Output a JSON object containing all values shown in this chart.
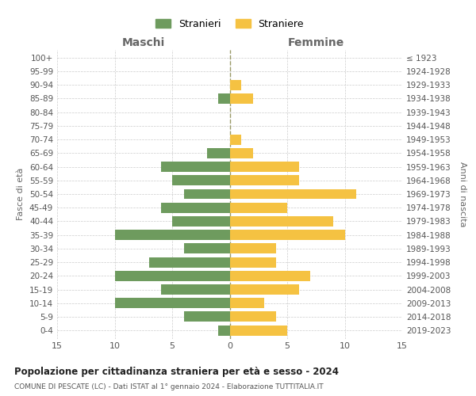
{
  "age_groups": [
    "0-4",
    "5-9",
    "10-14",
    "15-19",
    "20-24",
    "25-29",
    "30-34",
    "35-39",
    "40-44",
    "45-49",
    "50-54",
    "55-59",
    "60-64",
    "65-69",
    "70-74",
    "75-79",
    "80-84",
    "85-89",
    "90-94",
    "95-99",
    "100+"
  ],
  "birth_years": [
    "2019-2023",
    "2014-2018",
    "2009-2013",
    "2004-2008",
    "1999-2003",
    "1994-1998",
    "1989-1993",
    "1984-1988",
    "1979-1983",
    "1974-1978",
    "1969-1973",
    "1964-1968",
    "1959-1963",
    "1954-1958",
    "1949-1953",
    "1944-1948",
    "1939-1943",
    "1934-1938",
    "1929-1933",
    "1924-1928",
    "≤ 1923"
  ],
  "maschi": [
    1,
    4,
    10,
    6,
    10,
    7,
    4,
    10,
    5,
    6,
    4,
    5,
    6,
    2,
    0,
    0,
    0,
    1,
    0,
    0,
    0
  ],
  "femmine": [
    5,
    4,
    3,
    6,
    7,
    4,
    4,
    10,
    9,
    5,
    11,
    6,
    6,
    2,
    1,
    0,
    0,
    2,
    1,
    0,
    0
  ],
  "color_maschi": "#6e9b5e",
  "color_femmine": "#f5c242",
  "title": "Popolazione per cittadinanza straniera per età e sesso - 2024",
  "subtitle": "COMUNE DI PESCATE (LC) - Dati ISTAT al 1° gennaio 2024 - Elaborazione TUTTITALIA.IT",
  "xlabel_left": "Maschi",
  "xlabel_right": "Femmine",
  "ylabel_left": "Fasce di età",
  "ylabel_right": "Anni di nascita",
  "legend_maschi": "Stranieri",
  "legend_femmine": "Straniere",
  "xlim": 15,
  "background_color": "#ffffff",
  "grid_color": "#cccccc"
}
